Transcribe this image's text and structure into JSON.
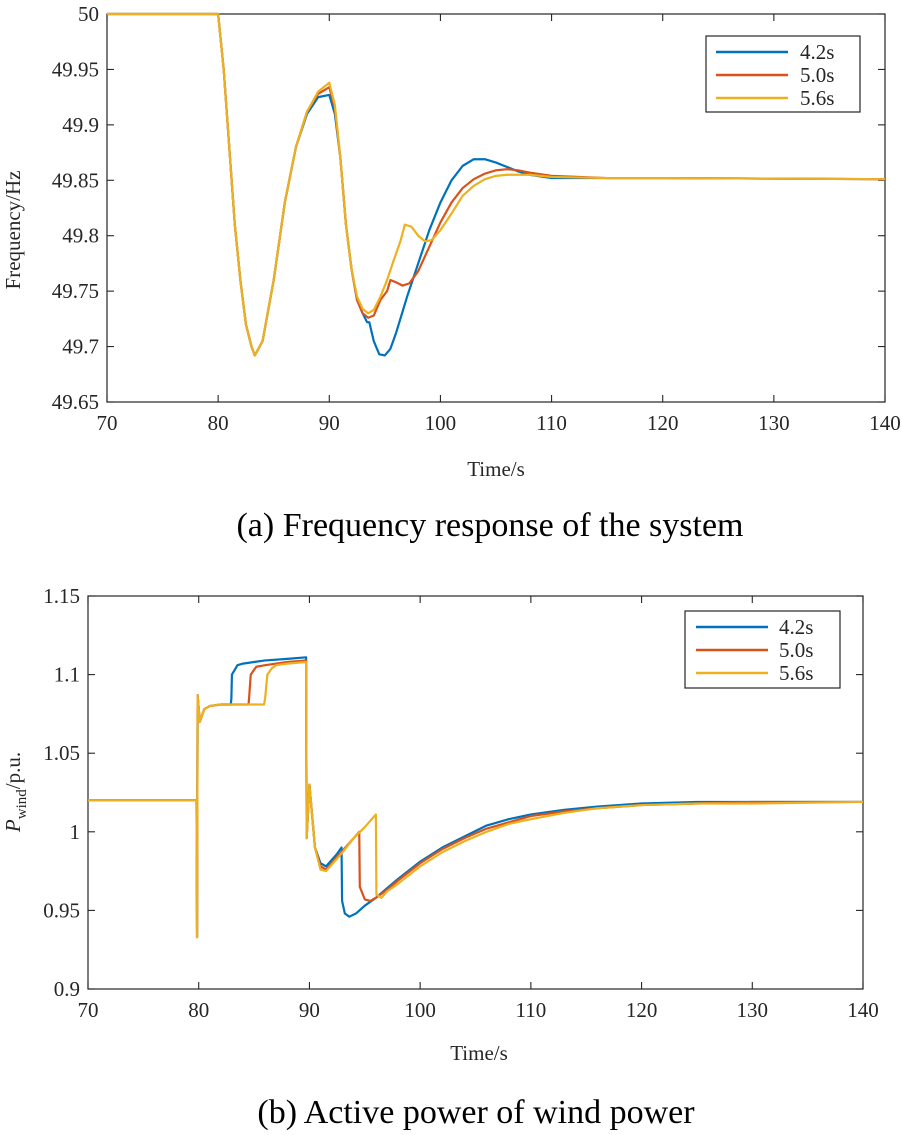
{
  "chart_data": [
    {
      "type": "line",
      "xlabel": "Time/s",
      "ylabel": "Frequency/Hz",
      "caption": "(a) Frequency response of the system",
      "xlim": [
        70,
        140
      ],
      "ylim": [
        49.65,
        50
      ],
      "xticks": [
        "70",
        "80",
        "90",
        "100",
        "110",
        "120",
        "130",
        "140"
      ],
      "yticks": [
        "49.65",
        "49.7",
        "49.75",
        "49.8",
        "49.85",
        "49.9",
        "49.95",
        "50"
      ],
      "legend_position": "top-right",
      "series": [
        {
          "name": "4.2s",
          "color": "#0072BD",
          "points": [
            [
              70,
              50
            ],
            [
              80,
              50
            ],
            [
              80.5,
              49.95
            ],
            [
              81,
              49.88
            ],
            [
              81.5,
              49.81
            ],
            [
              82,
              49.76
            ],
            [
              82.5,
              49.72
            ],
            [
              83,
              49.7
            ],
            [
              83.3,
              49.692
            ],
            [
              84,
              49.705
            ],
            [
              85,
              49.76
            ],
            [
              86,
              49.83
            ],
            [
              87,
              49.88
            ],
            [
              88,
              49.91
            ],
            [
              89,
              49.925
            ],
            [
              90,
              49.927
            ],
            [
              90.5,
              49.91
            ],
            [
              91,
              49.87
            ],
            [
              91.5,
              49.81
            ],
            [
              92,
              49.77
            ],
            [
              92.5,
              49.742
            ],
            [
              93,
              49.73
            ],
            [
              93.4,
              49.722
            ],
            [
              93.6,
              49.722
            ],
            [
              94,
              49.705
            ],
            [
              94.5,
              49.693
            ],
            [
              95,
              49.692
            ],
            [
              95.5,
              49.698
            ],
            [
              96,
              49.712
            ],
            [
              97,
              49.745
            ],
            [
              98,
              49.775
            ],
            [
              99,
              49.805
            ],
            [
              100,
              49.83
            ],
            [
              101,
              49.85
            ],
            [
              102,
              49.863
            ],
            [
              103,
              49.869
            ],
            [
              104,
              49.869
            ],
            [
              105,
              49.866
            ],
            [
              106,
              49.862
            ],
            [
              107,
              49.858
            ],
            [
              108,
              49.855
            ],
            [
              110,
              49.852
            ],
            [
              115,
              49.852
            ],
            [
              120,
              49.852
            ],
            [
              140,
              49.851
            ]
          ]
        },
        {
          "name": "5.0s",
          "color": "#D95319",
          "points": [
            [
              70,
              50
            ],
            [
              80,
              50
            ],
            [
              80.5,
              49.95
            ],
            [
              81,
              49.88
            ],
            [
              81.5,
              49.81
            ],
            [
              82,
              49.76
            ],
            [
              82.5,
              49.72
            ],
            [
              83,
              49.7
            ],
            [
              83.3,
              49.692
            ],
            [
              84,
              49.705
            ],
            [
              85,
              49.76
            ],
            [
              86,
              49.83
            ],
            [
              87,
              49.88
            ],
            [
              88,
              49.912
            ],
            [
              89,
              49.928
            ],
            [
              90,
              49.934
            ],
            [
              90.5,
              49.915
            ],
            [
              91,
              49.87
            ],
            [
              91.5,
              49.81
            ],
            [
              92,
              49.77
            ],
            [
              92.5,
              49.742
            ],
            [
              93,
              49.73
            ],
            [
              93.5,
              49.726
            ],
            [
              94,
              49.728
            ],
            [
              94.6,
              49.742
            ],
            [
              95.2,
              49.75
            ],
            [
              95.5,
              49.76
            ],
            [
              96,
              49.758
            ],
            [
              96.6,
              49.755
            ],
            [
              97.2,
              49.757
            ],
            [
              98,
              49.768
            ],
            [
              99,
              49.79
            ],
            [
              100,
              49.812
            ],
            [
              101,
              49.83
            ],
            [
              102,
              49.843
            ],
            [
              103,
              49.851
            ],
            [
              104,
              49.856
            ],
            [
              105,
              49.859
            ],
            [
              106,
              49.86
            ],
            [
              107,
              49.859
            ],
            [
              108,
              49.857
            ],
            [
              110,
              49.854
            ],
            [
              115,
              49.852
            ],
            [
              120,
              49.852
            ],
            [
              140,
              49.851
            ]
          ]
        },
        {
          "name": "5.6s",
          "color": "#EDB120",
          "points": [
            [
              70,
              50
            ],
            [
              80,
              50
            ],
            [
              80.5,
              49.95
            ],
            [
              81,
              49.88
            ],
            [
              81.5,
              49.81
            ],
            [
              82,
              49.76
            ],
            [
              82.5,
              49.72
            ],
            [
              83,
              49.7
            ],
            [
              83.3,
              49.692
            ],
            [
              84,
              49.705
            ],
            [
              85,
              49.76
            ],
            [
              86,
              49.83
            ],
            [
              87,
              49.88
            ],
            [
              88,
              49.912
            ],
            [
              89,
              49.93
            ],
            [
              90,
              49.938
            ],
            [
              90.5,
              49.918
            ],
            [
              91,
              49.87
            ],
            [
              91.5,
              49.81
            ],
            [
              92,
              49.77
            ],
            [
              92.5,
              49.745
            ],
            [
              93,
              49.734
            ],
            [
              93.5,
              49.73
            ],
            [
              94,
              49.733
            ],
            [
              94.6,
              49.745
            ],
            [
              95.2,
              49.76
            ],
            [
              95.8,
              49.778
            ],
            [
              96.4,
              49.795
            ],
            [
              96.8,
              49.81
            ],
            [
              97.4,
              49.808
            ],
            [
              98,
              49.8
            ],
            [
              98.6,
              49.795
            ],
            [
              99.2,
              49.796
            ],
            [
              100,
              49.805
            ],
            [
              101,
              49.82
            ],
            [
              102,
              49.836
            ],
            [
              103,
              49.845
            ],
            [
              104,
              49.851
            ],
            [
              105,
              49.854
            ],
            [
              106,
              49.855
            ],
            [
              108,
              49.855
            ],
            [
              110,
              49.853
            ],
            [
              115,
              49.852
            ],
            [
              120,
              49.852
            ],
            [
              140,
              49.851
            ]
          ]
        }
      ]
    },
    {
      "type": "line",
      "xlabel": "Time/s",
      "ylabel_main": "P",
      "ylabel_sub": "wind",
      "ylabel_suffix": "/p.u.",
      "caption": "(b) Active power of wind power",
      "xlim": [
        70,
        140
      ],
      "ylim": [
        0.9,
        1.15
      ],
      "xticks": [
        "70",
        "80",
        "90",
        "100",
        "110",
        "120",
        "130",
        "140"
      ],
      "yticks": [
        "0.9",
        "0.95",
        "1",
        "1.05",
        "1.1",
        "1.15"
      ],
      "legend_position": "top-right",
      "series": [
        {
          "name": "4.2s",
          "color": "#0072BD",
          "points": [
            [
              70,
              1.02
            ],
            [
              79.8,
              1.02
            ],
            [
              79.85,
              0.933
            ],
            [
              79.9,
              1.087
            ],
            [
              80.1,
              1.07
            ],
            [
              80.5,
              1.078
            ],
            [
              81,
              1.08
            ],
            [
              82,
              1.081
            ],
            [
              82.9,
              1.081
            ],
            [
              82.95,
              1.085
            ],
            [
              83,
              1.1
            ],
            [
              83.5,
              1.106
            ],
            [
              84,
              1.107
            ],
            [
              86,
              1.109
            ],
            [
              88,
              1.11
            ],
            [
              89.7,
              1.111
            ],
            [
              89.75,
              0.996
            ],
            [
              90,
              1.03
            ],
            [
              90.5,
              0.99
            ],
            [
              91,
              0.98
            ],
            [
              91.5,
              0.978
            ],
            [
              92,
              0.982
            ],
            [
              92.5,
              0.986
            ],
            [
              92.9,
              0.99
            ],
            [
              92.95,
              0.956
            ],
            [
              93.2,
              0.948
            ],
            [
              93.6,
              0.946
            ],
            [
              94.2,
              0.948
            ],
            [
              95,
              0.953
            ],
            [
              96,
              0.958
            ],
            [
              97,
              0.964
            ],
            [
              98,
              0.97
            ],
            [
              100,
              0.981
            ],
            [
              102,
              0.99
            ],
            [
              104,
              0.997
            ],
            [
              106,
              1.004
            ],
            [
              108,
              1.008
            ],
            [
              110,
              1.011
            ],
            [
              113,
              1.014
            ],
            [
              116,
              1.016
            ],
            [
              120,
              1.018
            ],
            [
              125,
              1.019
            ],
            [
              130,
              1.019
            ],
            [
              140,
              1.019
            ]
          ]
        },
        {
          "name": "5.0s",
          "color": "#D95319",
          "points": [
            [
              70,
              1.02
            ],
            [
              79.8,
              1.02
            ],
            [
              79.85,
              0.933
            ],
            [
              79.9,
              1.087
            ],
            [
              80.1,
              1.07
            ],
            [
              80.5,
              1.078
            ],
            [
              81,
              1.08
            ],
            [
              82,
              1.081
            ],
            [
              84.5,
              1.081
            ],
            [
              84.55,
              1.085
            ],
            [
              84.7,
              1.1
            ],
            [
              85.2,
              1.105
            ],
            [
              86,
              1.106
            ],
            [
              88,
              1.108
            ],
            [
              89.7,
              1.109
            ],
            [
              89.75,
              0.996
            ],
            [
              90,
              1.03
            ],
            [
              90.5,
              0.99
            ],
            [
              91,
              0.978
            ],
            [
              91.5,
              0.976
            ],
            [
              92,
              0.98
            ],
            [
              93,
              0.988
            ],
            [
              94,
              0.996
            ],
            [
              94.5,
              1.0
            ],
            [
              94.55,
              0.965
            ],
            [
              95,
              0.957
            ],
            [
              95.5,
              0.956
            ],
            [
              96,
              0.958
            ],
            [
              97,
              0.963
            ],
            [
              98,
              0.969
            ],
            [
              100,
              0.98
            ],
            [
              102,
              0.989
            ],
            [
              104,
              0.996
            ],
            [
              106,
              1.002
            ],
            [
              108,
              1.006
            ],
            [
              110,
              1.01
            ],
            [
              113,
              1.013
            ],
            [
              116,
              1.015
            ],
            [
              120,
              1.017
            ],
            [
              125,
              1.018
            ],
            [
              130,
              1.019
            ],
            [
              140,
              1.019
            ]
          ]
        },
        {
          "name": "5.6s",
          "color": "#EDB120",
          "points": [
            [
              70,
              1.02
            ],
            [
              79.8,
              1.02
            ],
            [
              79.85,
              0.933
            ],
            [
              79.9,
              1.087
            ],
            [
              80.1,
              1.07
            ],
            [
              80.5,
              1.078
            ],
            [
              81,
              1.08
            ],
            [
              82,
              1.081
            ],
            [
              85.9,
              1.081
            ],
            [
              86,
              1.085
            ],
            [
              86.2,
              1.1
            ],
            [
              86.6,
              1.104
            ],
            [
              87,
              1.106
            ],
            [
              88,
              1.107
            ],
            [
              89.7,
              1.108
            ],
            [
              89.75,
              0.996
            ],
            [
              90,
              1.03
            ],
            [
              90.5,
              0.99
            ],
            [
              91,
              0.976
            ],
            [
              91.5,
              0.975
            ],
            [
              92,
              0.979
            ],
            [
              93,
              0.987
            ],
            [
              94,
              0.996
            ],
            [
              95,
              1.003
            ],
            [
              96,
              1.011
            ],
            [
              96.05,
              0.96
            ],
            [
              96.5,
              0.958
            ],
            [
              97,
              0.962
            ],
            [
              98,
              0.967
            ],
            [
              100,
              0.978
            ],
            [
              102,
              0.987
            ],
            [
              104,
              0.994
            ],
            [
              106,
              1.0
            ],
            [
              108,
              1.005
            ],
            [
              110,
              1.008
            ],
            [
              113,
              1.012
            ],
            [
              116,
              1.015
            ],
            [
              120,
              1.017
            ],
            [
              125,
              1.018
            ],
            [
              130,
              1.018
            ],
            [
              140,
              1.019
            ]
          ]
        }
      ]
    }
  ]
}
